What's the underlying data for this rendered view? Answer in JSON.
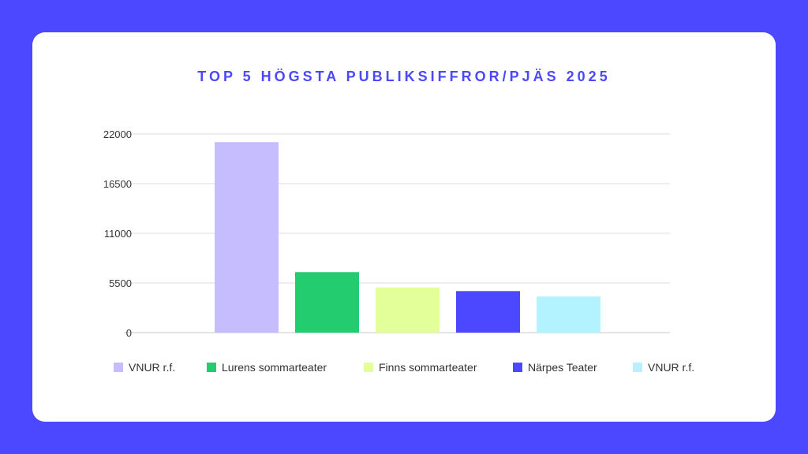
{
  "chart_data": {
    "type": "bar",
    "title": "TOP 5 HÖGSTA PUBLIKSIFFROR/PJÄS 2025",
    "xlabel": "",
    "ylabel": "",
    "ylim": [
      0,
      22000
    ],
    "yticks": [
      "0",
      "5500",
      "11000",
      "16500",
      "22000"
    ],
    "grid": true,
    "legend_position": "bottom",
    "series": [
      {
        "name": "VNUR r.f.",
        "value": 21100,
        "color": "#c5bdff"
      },
      {
        "name": "Lurens sommarteater",
        "value": 6700,
        "color": "#23cc6e"
      },
      {
        "name": "Finns sommarteater",
        "value": 5000,
        "color": "#e3ff99"
      },
      {
        "name": "Närpes Teater",
        "value": 4600,
        "color": "#4c48ff"
      },
      {
        "name": "VNUR r.f.",
        "value": 4000,
        "color": "#b3f2ff"
      }
    ]
  }
}
